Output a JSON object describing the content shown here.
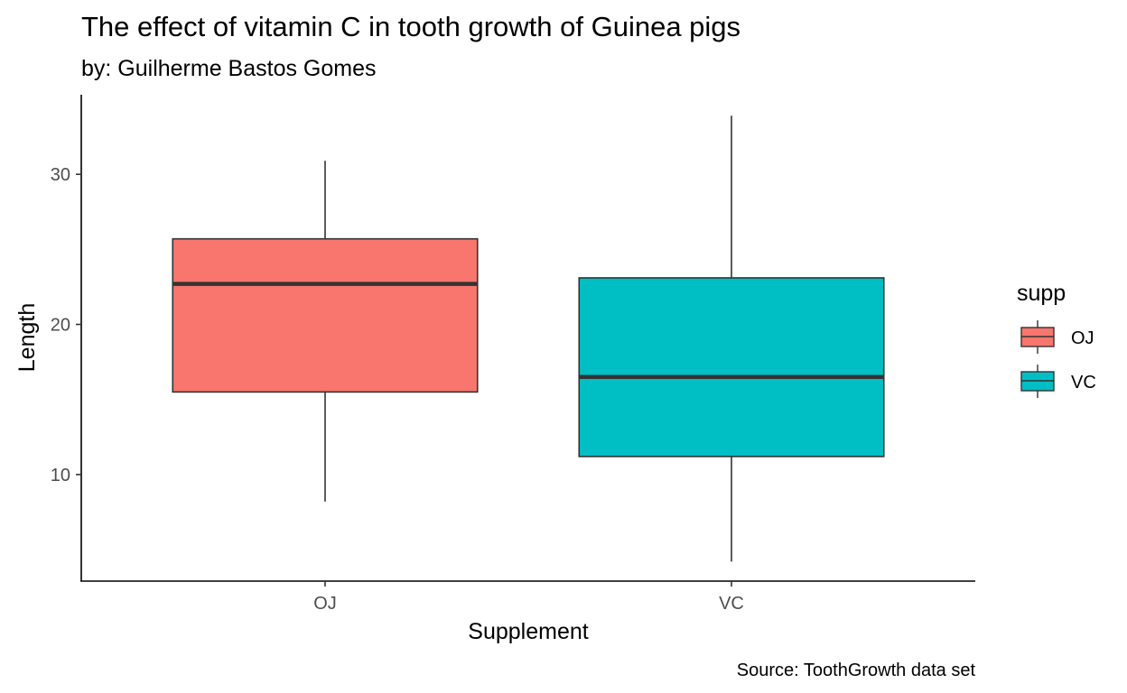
{
  "chart_data": {
    "type": "boxplot",
    "title": "The effect of vitamin C in tooth growth of Guinea pigs",
    "subtitle": "by: Guilherme Bastos Gomes",
    "xlabel": "Supplement",
    "ylabel": "Length",
    "caption": "Source: ToothGrowth data set",
    "categories": [
      "OJ",
      "VC"
    ],
    "yticks": [
      10,
      20,
      30
    ],
    "ylim": [
      2.9,
      35.3
    ],
    "grid": false,
    "legend": {
      "title": "supp",
      "position": "right",
      "entries": [
        {
          "label": "OJ",
          "color": "#F8766D"
        },
        {
          "label": "VC",
          "color": "#00BFC4"
        }
      ]
    },
    "series": [
      {
        "category": "OJ",
        "color": "#F8766D",
        "min": 8.2,
        "q1": 15.5,
        "median": 22.7,
        "q3": 25.7,
        "max": 30.9
      },
      {
        "category": "VC",
        "color": "#00BFC4",
        "min": 4.2,
        "q1": 11.2,
        "median": 16.5,
        "q3": 23.1,
        "max": 33.9
      }
    ]
  }
}
